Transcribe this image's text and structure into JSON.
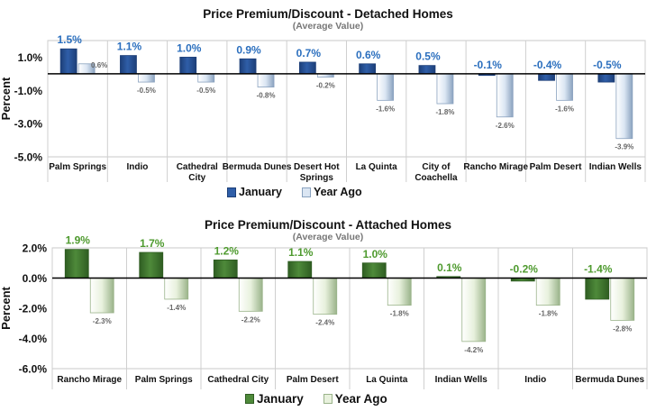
{
  "chart_data": [
    {
      "type": "bar",
      "title": "Price Premium/Discount - Detached Homes",
      "subtitle": "(Average Value)",
      "ylabel": "Percent",
      "ylim": [
        -5.0,
        2.0
      ],
      "yticks": [
        "1.0%",
        "-1.0%",
        "-3.0%",
        "-5.0%"
      ],
      "categories": [
        "Palm Springs",
        "Indio",
        "Cathedral City",
        "Bermuda Dunes",
        "Desert Hot Springs",
        "La Quinta",
        "City of Coachella",
        "Rancho Mirage",
        "Palm Desert",
        "Indian Wells"
      ],
      "series": [
        {
          "name": "January",
          "values": [
            1.5,
            1.1,
            1.0,
            0.9,
            0.7,
            0.6,
            0.5,
            -0.1,
            -0.4,
            -0.5
          ],
          "labels": [
            "1.5%",
            "1.1%",
            "1.0%",
            "0.9%",
            "0.7%",
            "0.6%",
            "0.5%",
            "-0.1%",
            "-0.4%",
            "-0.5%"
          ]
        },
        {
          "name": "Year Ago",
          "values": [
            0.6,
            -0.5,
            -0.5,
            -0.8,
            -0.2,
            -1.6,
            -1.8,
            -2.6,
            -1.6,
            -3.9
          ],
          "labels": [
            "0.6%",
            "-0.5%",
            "-0.5%",
            "-0.8%",
            "-0.2%",
            "-1.6%",
            "-1.8%",
            "-2.6%",
            "-1.6%",
            "-3.9%"
          ]
        }
      ],
      "legend": "bottom-center",
      "colors": {
        "january": "#2f5ea8",
        "year_ago": "#dbe6f3",
        "label": "#2b6fbe"
      }
    },
    {
      "type": "bar",
      "title": "Price Premium/Discount - Attached Homes",
      "subtitle": "(Average Value)",
      "ylabel": "Percent",
      "ylim": [
        -6.0,
        2.0
      ],
      "yticks": [
        "2.0%",
        "0.0%",
        "-2.0%",
        "-4.0%",
        "-6.0%"
      ],
      "categories": [
        "Rancho Mirage",
        "Palm Springs",
        "Cathedral City",
        "Palm Desert",
        "La Quinta",
        "Indian Wells",
        "Indio",
        "Bermuda Dunes"
      ],
      "series": [
        {
          "name": "January",
          "values": [
            1.9,
            1.7,
            1.2,
            1.1,
            1.0,
            0.1,
            -0.2,
            -1.4
          ],
          "labels": [
            "1.9%",
            "1.7%",
            "1.2%",
            "1.1%",
            "1.0%",
            "0.1%",
            "-0.2%",
            "-1.4%"
          ]
        },
        {
          "name": "Year Ago",
          "values": [
            -2.3,
            -1.4,
            -2.2,
            -2.4,
            -1.8,
            -4.2,
            -1.8,
            -2.8
          ],
          "labels": [
            "-2.3%",
            "-1.4%",
            "-2.2%",
            "-2.4%",
            "-1.8%",
            "-4.2%",
            "-1.8%",
            "-2.8%"
          ]
        }
      ],
      "legend": "bottom-center",
      "colors": {
        "january": "#4e8a3a",
        "year_ago": "#e8f1dd",
        "label": "#4e9a2e"
      }
    }
  ]
}
